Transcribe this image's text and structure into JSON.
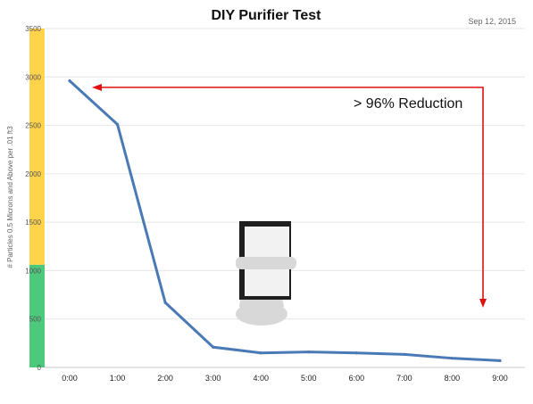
{
  "chart_data": {
    "type": "line",
    "title": "DIY Purifier Test",
    "date_label": "Sep 12, 2015",
    "ylabel": "# Particles 0.5 Microns and Above per .01 ft3",
    "xlabel": "",
    "categories": [
      "0:00",
      "1:00",
      "2:00",
      "3:00",
      "4:00",
      "5:00",
      "6:00",
      "7:00",
      "8:00",
      "9:00"
    ],
    "series": [
      {
        "values": [
          2960,
          2510,
          670,
          210,
          150,
          160,
          150,
          135,
          95,
          70
        ]
      }
    ],
    "ylim": [
      0,
      3500
    ],
    "yticks": [
      0,
      500,
      1000,
      1500,
      2000,
      2500,
      3000,
      3500
    ],
    "grid": true,
    "bands": [
      {
        "from": 0,
        "to": 1060,
        "color": "#4cc97a"
      },
      {
        "from": 1060,
        "to": 3500,
        "color": "#ffd34c"
      }
    ],
    "annotation": {
      "text": "> 96% Reduction",
      "color": "#dd1111"
    },
    "line_color": "#4a7ab5",
    "purifier_image": {
      "frame_color": "#1f1f1f",
      "filter_color": "#f2f2f2",
      "fan_color": "#d8d8d8"
    }
  }
}
